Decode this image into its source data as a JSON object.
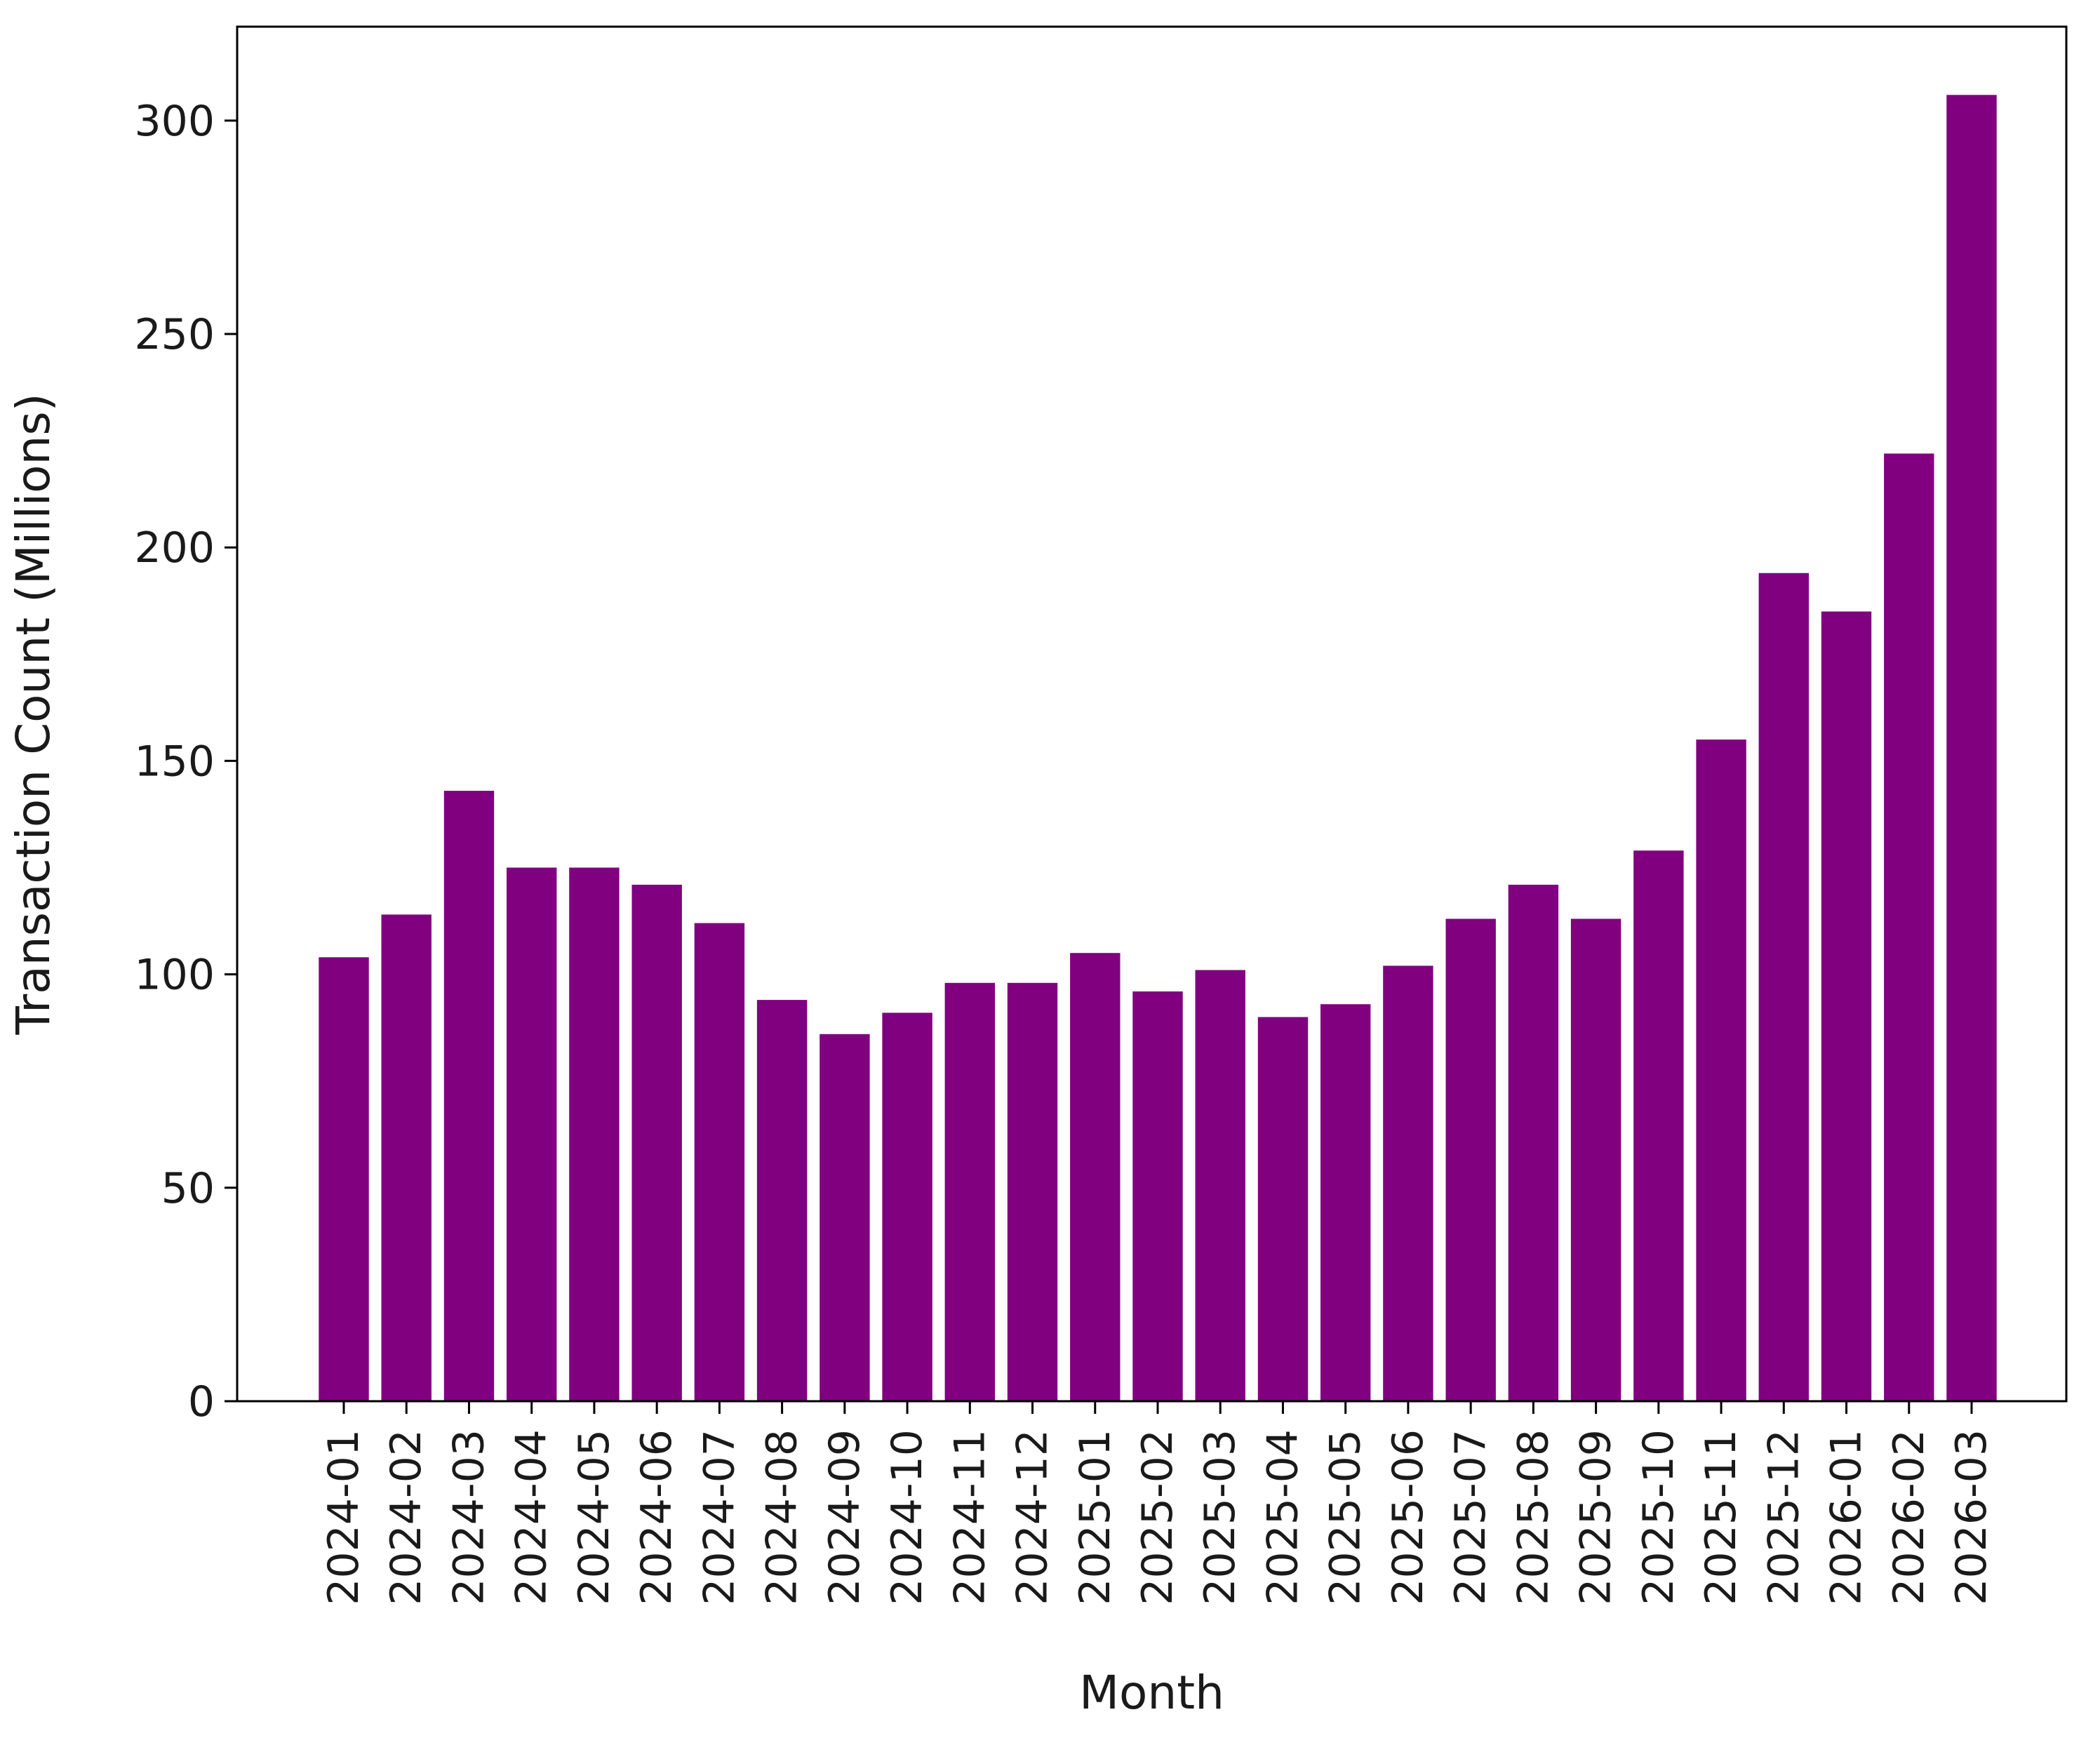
{
  "chart_data": {
    "type": "bar",
    "title": "",
    "xlabel": "Month",
    "ylabel": "Transaction Count (Millions)",
    "ylim": [
      0,
      322
    ],
    "yticks": [
      0,
      50,
      100,
      150,
      200,
      250,
      300
    ],
    "grid": false,
    "legend": "none",
    "bar_color": "#800080",
    "categories": [
      "2024-01",
      "2024-02",
      "2024-03",
      "2024-04",
      "2024-05",
      "2024-06",
      "2024-07",
      "2024-08",
      "2024-09",
      "2024-10",
      "2024-11",
      "2024-12",
      "2025-01",
      "2025-02",
      "2025-03",
      "2025-04",
      "2025-05",
      "2025-06",
      "2025-07",
      "2025-08",
      "2025-09",
      "2025-10",
      "2025-11",
      "2025-12",
      "2026-01",
      "2026-02",
      "2026-03"
    ],
    "values": [
      104,
      114,
      143,
      125,
      125,
      121,
      112,
      94,
      86,
      91,
      98,
      98,
      105,
      96,
      101,
      90,
      93,
      102,
      113,
      121,
      113,
      129,
      155,
      194,
      185,
      222,
      306
    ]
  }
}
